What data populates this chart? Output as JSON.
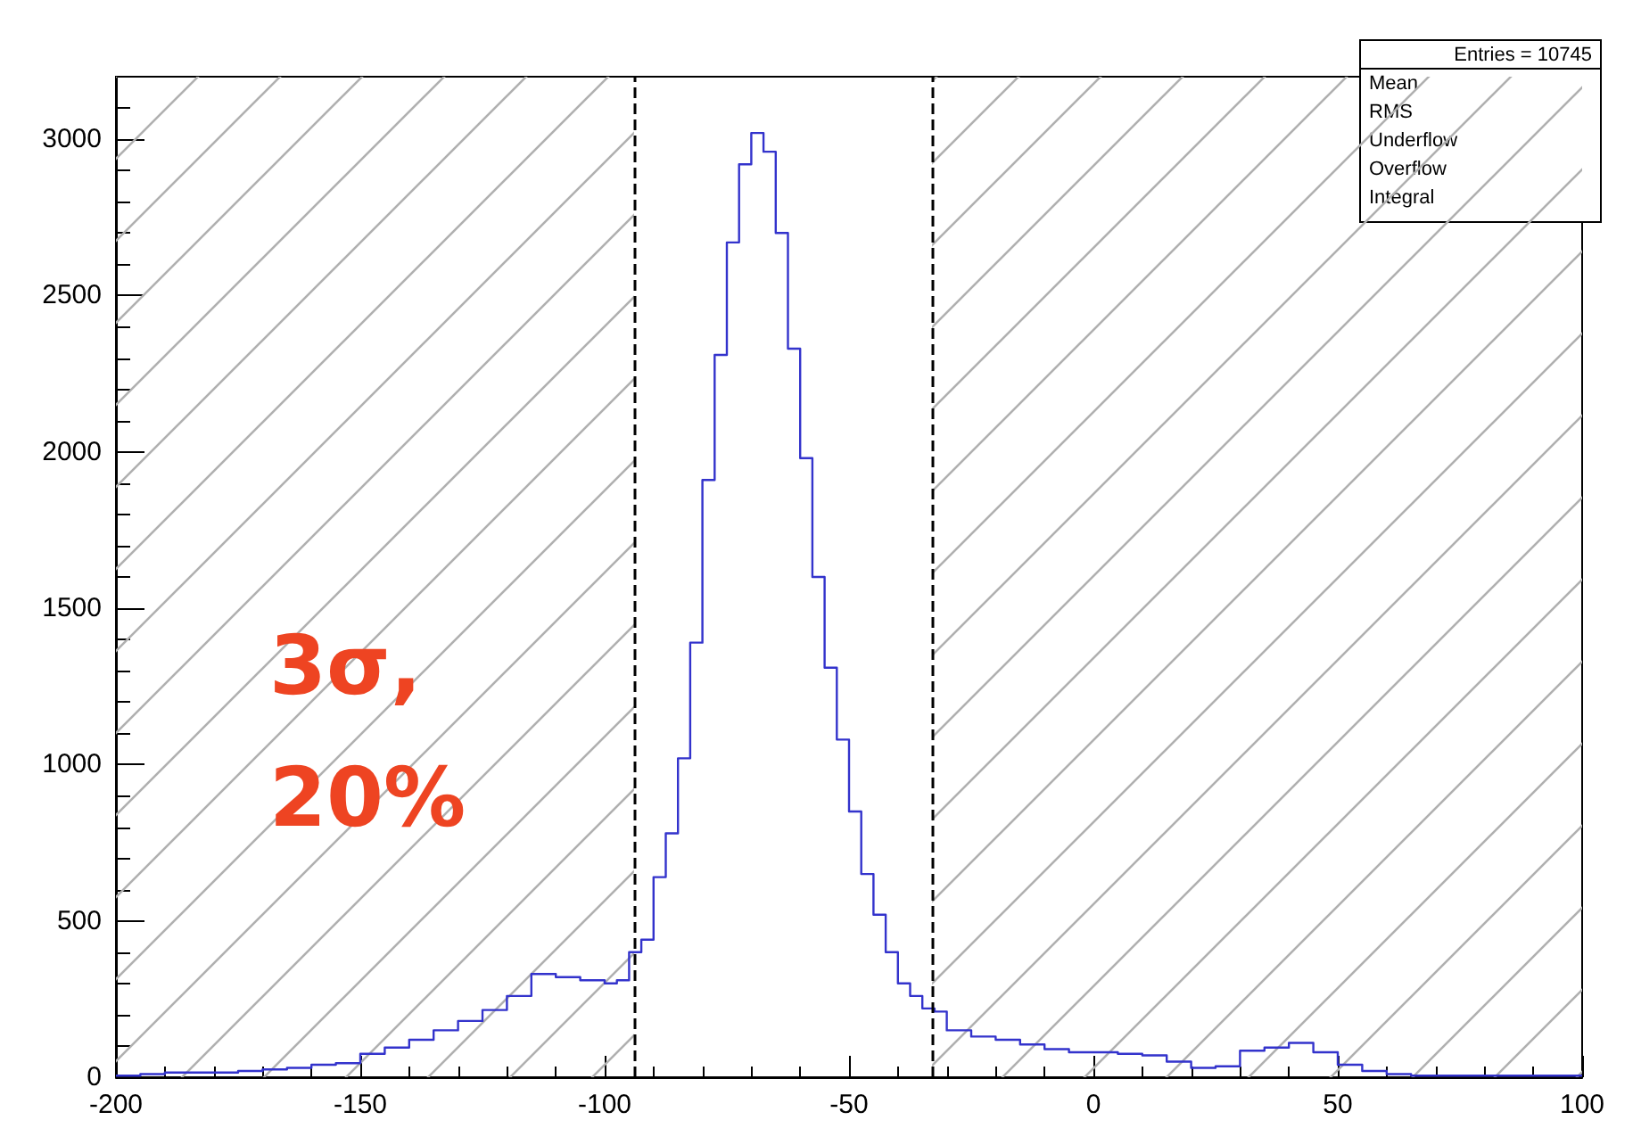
{
  "chart_data": {
    "type": "histogram",
    "bins": [
      -200,
      -195,
      -190,
      -185,
      -180,
      -175,
      -170,
      -165,
      -160,
      -155,
      -150,
      -145,
      -140,
      -135,
      -130,
      -125,
      -120,
      -115,
      -110,
      -105,
      -100,
      -97.5,
      -95,
      -92.5,
      -90,
      -87.5,
      -85,
      -82.5,
      -80,
      -77.5,
      -75,
      -72.5,
      -70,
      -67.5,
      -65,
      -62.5,
      -60,
      -57.5,
      -55,
      -52.5,
      -50,
      -47.5,
      -45,
      -42.5,
      -40,
      -37.5,
      -35,
      -32.5,
      -30,
      -25,
      -20,
      -15,
      -10,
      -5,
      0,
      5,
      10,
      15,
      20,
      25,
      30,
      35,
      40,
      45,
      50,
      55,
      60,
      65,
      70,
      75,
      80,
      85,
      90,
      95,
      100
    ],
    "values": [
      5,
      10,
      15,
      15,
      15,
      20,
      25,
      30,
      40,
      45,
      75,
      95,
      120,
      150,
      180,
      215,
      260,
      330,
      320,
      310,
      300,
      310,
      400,
      440,
      640,
      780,
      1020,
      1390,
      1910,
      2310,
      2670,
      2920,
      3020,
      2960,
      2700,
      2330,
      1980,
      1600,
      1310,
      1080,
      850,
      650,
      520,
      400,
      300,
      260,
      220,
      210,
      150,
      130,
      120,
      105,
      90,
      80,
      80,
      75,
      70,
      50,
      30,
      35,
      85,
      95,
      110,
      80,
      40,
      20,
      10,
      5,
      5,
      5,
      5,
      5,
      5,
      5
    ],
    "color": "#3333cc",
    "xlim": [
      -200,
      100
    ],
    "xticks": [
      -200,
      -150,
      -100,
      -50,
      0,
      50,
      100
    ],
    "ylim": [
      0,
      3200
    ],
    "yticks": [
      0,
      500,
      1000,
      1500,
      2000,
      2500,
      3000
    ],
    "grid": false,
    "ref_lines": [
      {
        "axis": "x",
        "value": -94,
        "color": "#000000",
        "line_style": "dashed"
      },
      {
        "axis": "x",
        "value": -33,
        "color": "#000000",
        "line_style": "dashed"
      }
    ],
    "bands": [
      {
        "axis": "x",
        "from": -200,
        "to": -94,
        "color": "#b0b0b0"
      },
      {
        "axis": "x",
        "from": -33,
        "to": 100,
        "color": "#b0b0b0"
      }
    ],
    "annotations": [
      "3σ, 20%",
      "Entries = 10745",
      "Mean",
      "RMS",
      "Underflow",
      "Overflow",
      "Integral"
    ]
  }
}
